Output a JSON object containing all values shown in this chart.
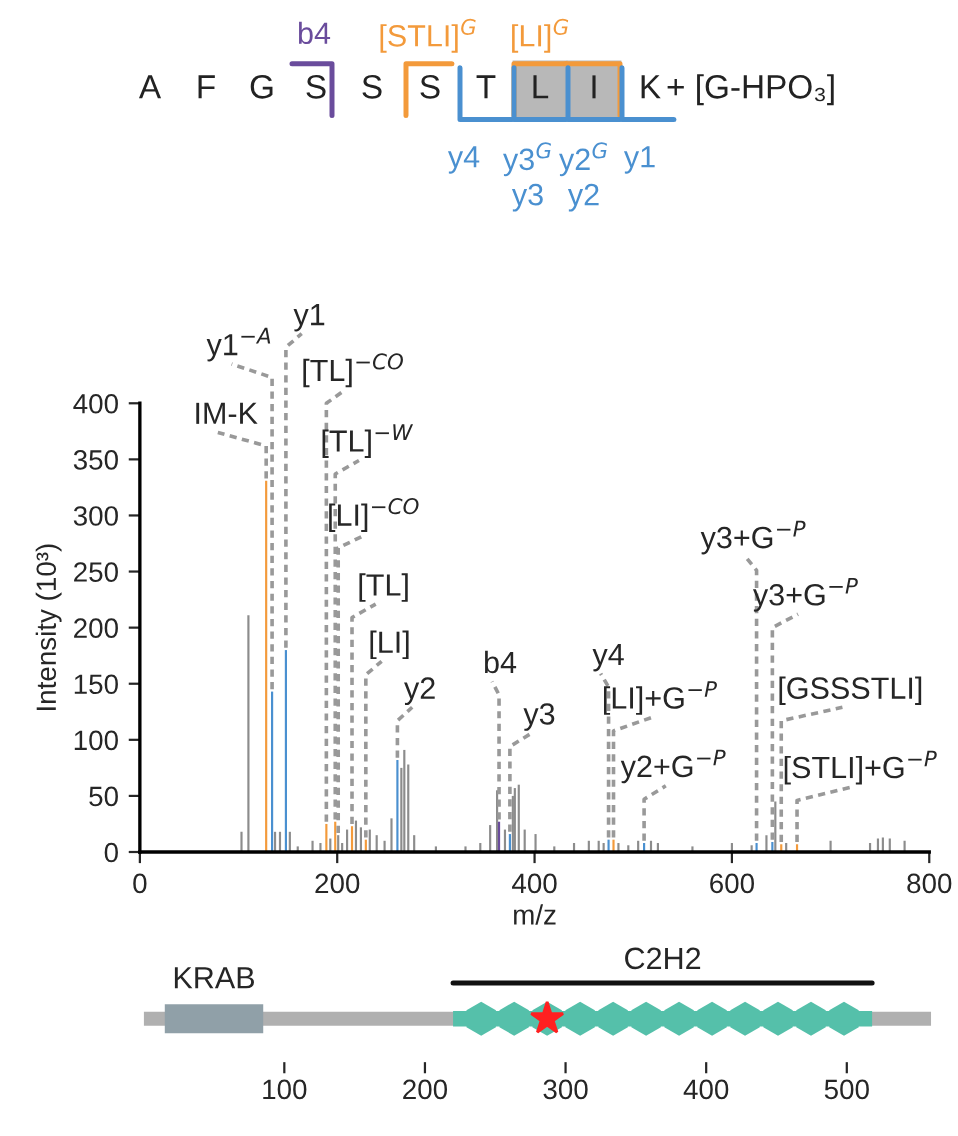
{
  "chart_data": [
    {
      "type": "other",
      "categories": [
        "A",
        "F",
        "G",
        "S",
        "S",
        "S",
        "T",
        "L",
        "I",
        "K"
      ],
      "annotations": [
        "+ [G-HPO₃]",
        "b4",
        "[STLI]$^{G}$",
        "[LI]$^{G}$",
        "y4",
        "y3$^{G}$",
        "y2$^{G}$",
        "y1",
        "y3",
        "y2"
      ]
    },
    {
      "type": "bar",
      "xlabel": "m/z",
      "ylabel": "Intensity (10³)",
      "xlim": [
        0,
        800
      ],
      "xticks": [
        0,
        200,
        400,
        600,
        800
      ],
      "ylim": [
        0,
        400
      ],
      "yticks": [
        0,
        50,
        100,
        150,
        200,
        250,
        300,
        350,
        400
      ],
      "grid": false,
      "legend": false,
      "series": [
        {
          "color": "#8c8c8c",
          "x": [
            103,
            110,
            137,
            142,
            152,
            160,
            175,
            183,
            193,
            201,
            205,
            210,
            219,
            224,
            233,
            240,
            248,
            255,
            265,
            268,
            272,
            278,
            300,
            330,
            345,
            355,
            362,
            370,
            378,
            380,
            384,
            390,
            401,
            420,
            440,
            455,
            465,
            470,
            485,
            495,
            505,
            518,
            525,
            560,
            600,
            620,
            635,
            644,
            655,
            700,
            740,
            748,
            753,
            760,
            775
          ],
          "values": [
            18,
            211,
            18,
            18,
            18,
            5,
            10,
            8,
            12,
            15,
            8,
            20,
            28,
            22,
            20,
            15,
            10,
            30,
            75,
            91,
            78,
            15,
            5,
            5,
            8,
            24,
            55,
            20,
            50,
            57,
            60,
            20,
            16,
            5,
            8,
            10,
            10,
            8,
            8,
            6,
            10,
            10,
            8,
            5,
            8,
            6,
            15,
            45,
            8,
            10,
            8,
            12,
            13,
            12,
            10
          ]
        },
        {
          "color": "#f39a3b",
          "x": [
            128,
            189,
            198,
            215,
            229,
            480,
            650,
            666
          ],
          "values": [
            331,
            25,
            27,
            23,
            11,
            11,
            7,
            7
          ]
        },
        {
          "color": "#4a90d0",
          "x": [
            134,
            148,
            261,
            375,
            475,
            511,
            625,
            641
          ],
          "values": [
            143,
            180,
            82,
            16,
            11,
            8,
            8,
            9
          ]
        },
        {
          "color": "#6a4c9c",
          "x": [
            364
          ],
          "values": [
            27
          ]
        }
      ],
      "annotations": [
        {
          "text": "IM-K",
          "x": 128,
          "y": 331
        },
        {
          "text": "y1$^{−A}$",
          "x": 134,
          "y": 143
        },
        {
          "text": "y1",
          "x": 148,
          "y": 180
        },
        {
          "text": "[TL]$^{−CO}$",
          "x": 189,
          "y": 25
        },
        {
          "text": "[TL]$^{−W}$",
          "x": 198,
          "y": 27
        },
        {
          "text": "[LI]$^{−CO}$",
          "x": 201,
          "y": 15
        },
        {
          "text": "[TL]",
          "x": 215,
          "y": 23
        },
        {
          "text": "[LI]",
          "x": 229,
          "y": 11
        },
        {
          "text": "y2",
          "x": 261,
          "y": 82
        },
        {
          "text": "b4",
          "x": 364,
          "y": 27
        },
        {
          "text": "y3",
          "x": 375,
          "y": 16
        },
        {
          "text": "y4",
          "x": 475,
          "y": 11
        },
        {
          "text": "[LI]+G$^{−P}$",
          "x": 480,
          "y": 11
        },
        {
          "text": "y2+G$^{−P}$",
          "x": 511,
          "y": 8
        },
        {
          "text": "y3+G$^{−P}$",
          "x": 625,
          "y": 8
        },
        {
          "text": "y3+G$^{−P}$",
          "x": 641,
          "y": 9
        },
        {
          "text": "[GSSSTLI]",
          "x": 650,
          "y": 7
        },
        {
          "text": "[STLI]+G$^{−P}$",
          "x": 666,
          "y": 7
        }
      ]
    },
    {
      "type": "bar",
      "orientation": "horizontal",
      "categories": [
        null
      ],
      "xlim": [
        0,
        560
      ],
      "xticks": [
        100,
        200,
        300,
        400,
        500
      ],
      "series": [
        {
          "name": "KRAB",
          "color": "#90a0a8",
          "base": [
            15
          ],
          "values": [
            70
          ]
        },
        {
          "name": "C2H2",
          "color": "#55c0aa",
          "base": [
            220
          ],
          "values": [
            298
          ]
        }
      ]
    }
  ]
}
